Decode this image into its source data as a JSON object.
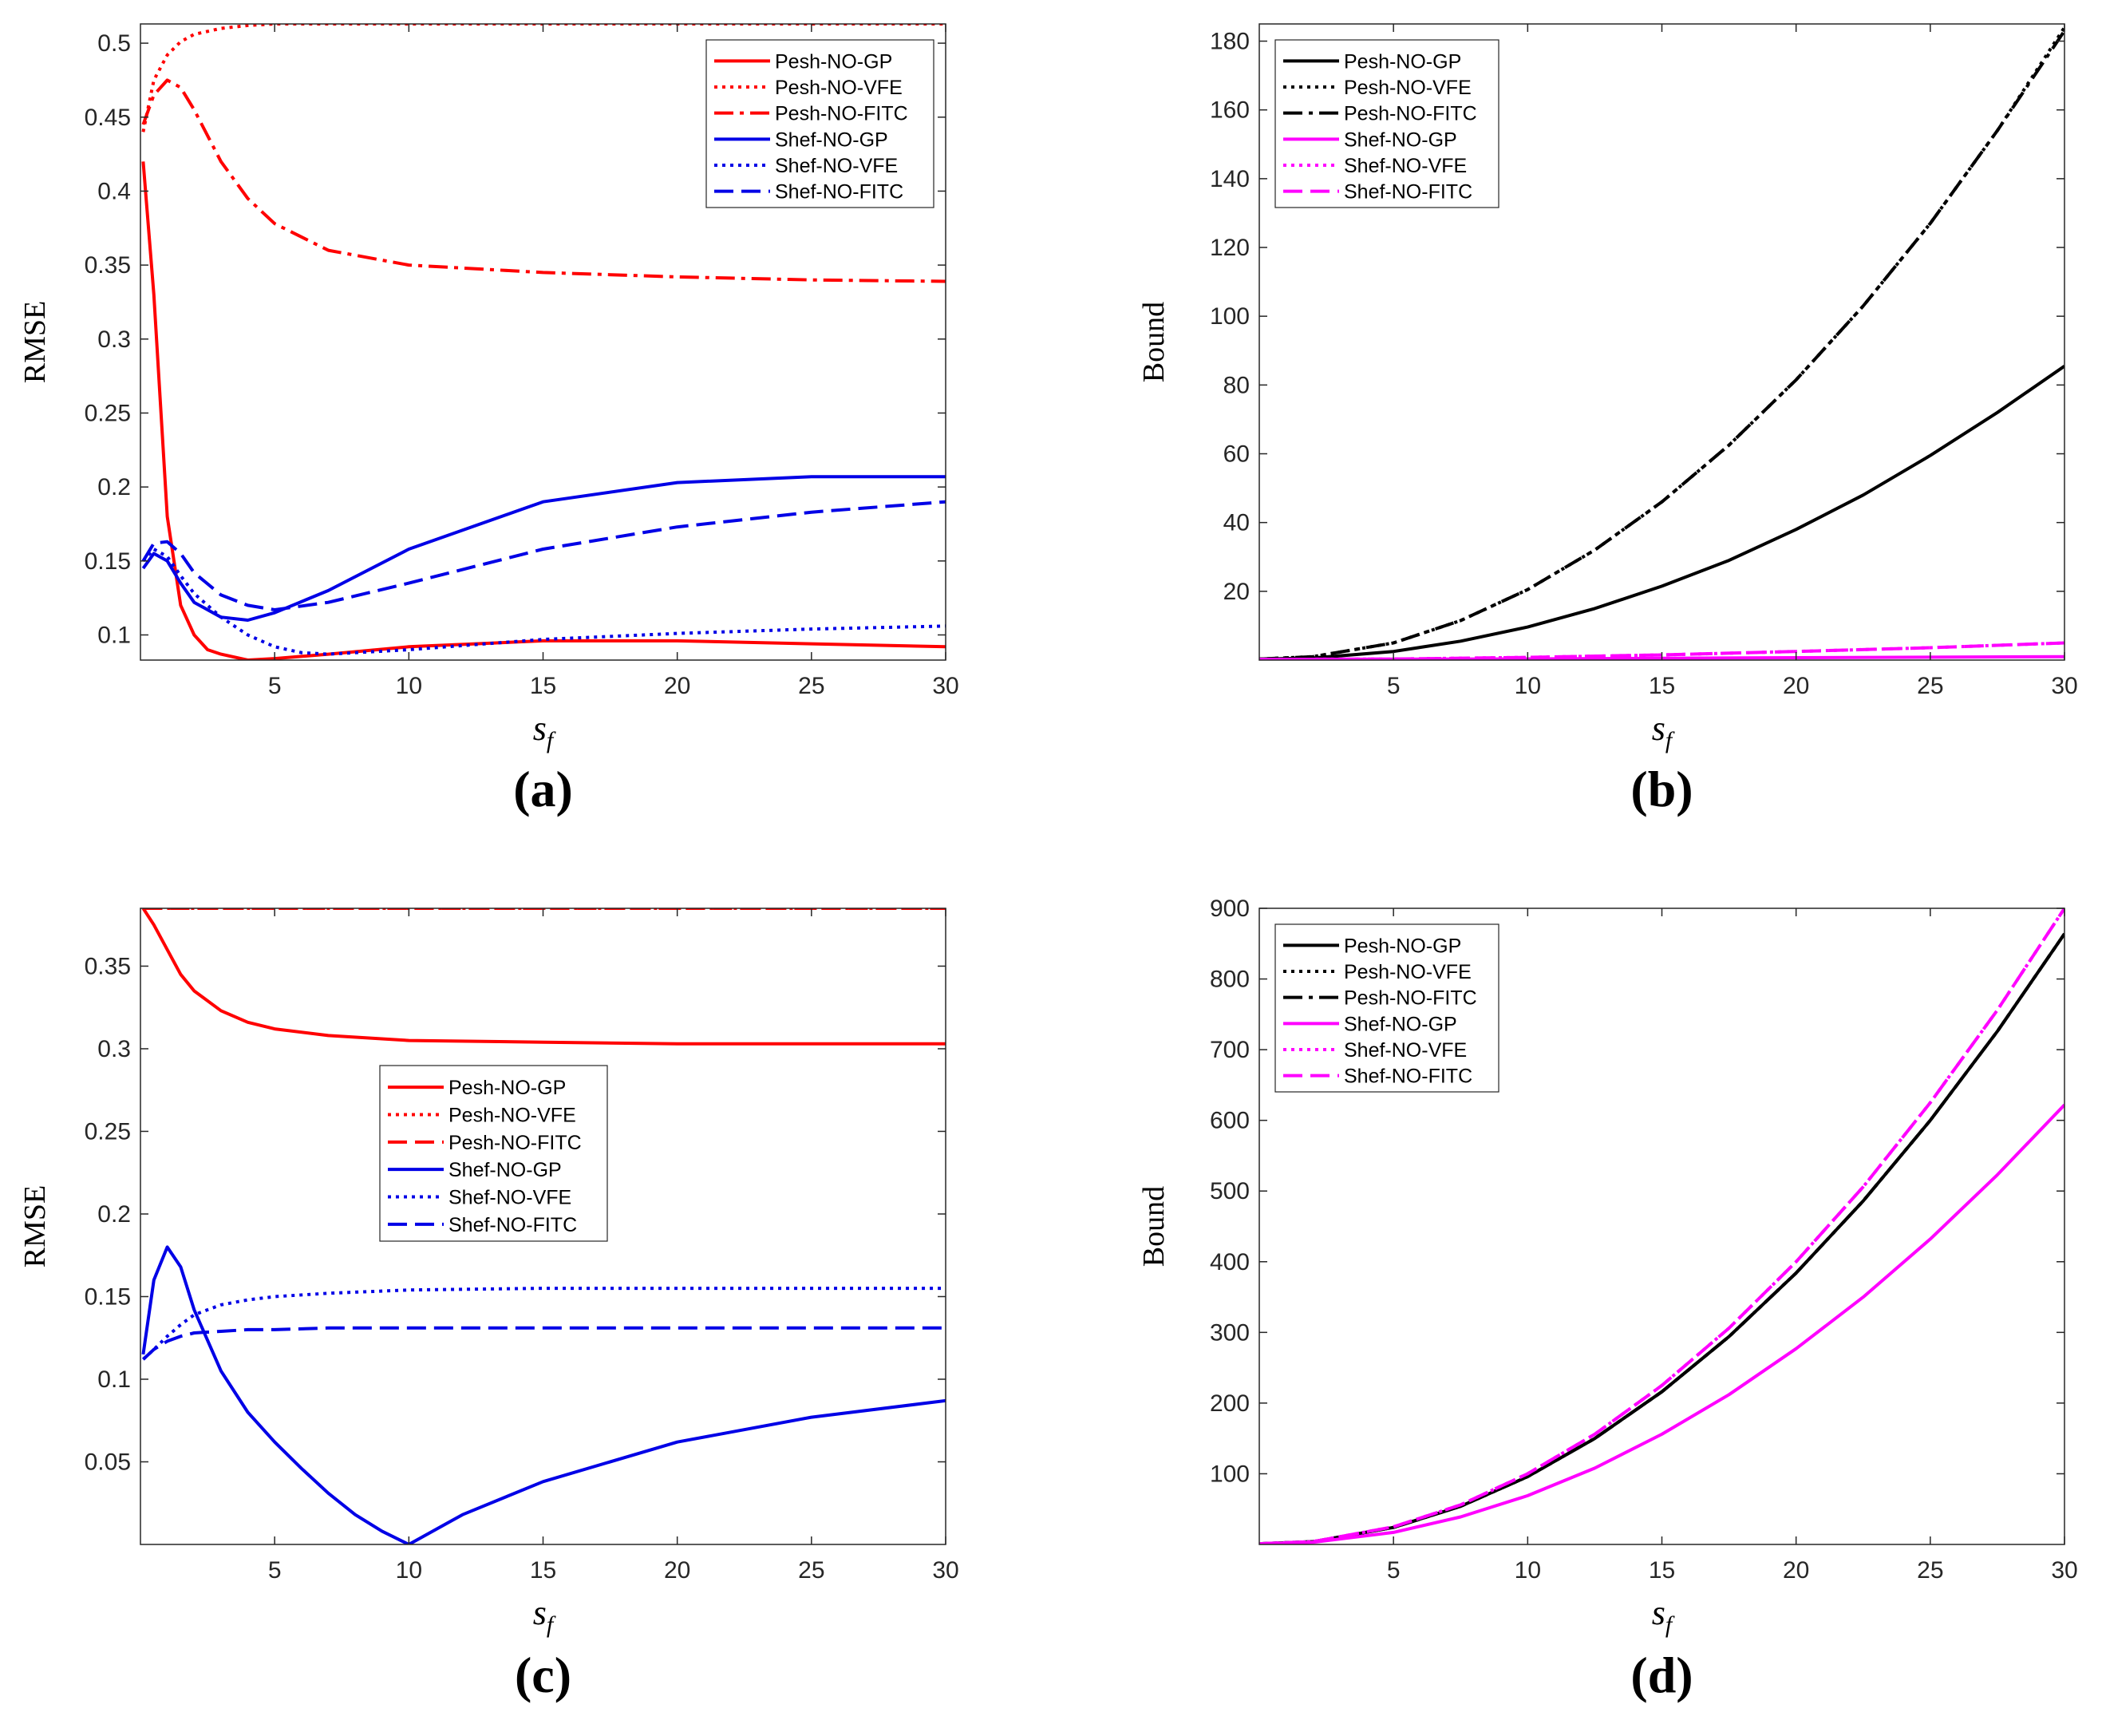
{
  "colors": {
    "red": "#ff0000",
    "blue": "#0000e6",
    "black": "#000000",
    "magenta": "#ff00ff",
    "axis": "#262626"
  },
  "chart_data": [
    {
      "id": "a",
      "type": "line",
      "panel_label": "(a)",
      "xlabel": "s_f",
      "ylabel": "RMSE",
      "xlim": [
        0,
        30
      ],
      "ylim": [
        0.083,
        0.513
      ],
      "xticks": [
        5,
        10,
        15,
        20,
        25,
        30
      ],
      "yticks": [
        0.1,
        0.15,
        0.2,
        0.25,
        0.3,
        0.35,
        0.4,
        0.45,
        0.5
      ],
      "legend_position": "top-right",
      "series": [
        {
          "name": "Pesh-NO-GP",
          "color": "#ff0000",
          "style": "solid",
          "width": 4,
          "x": [
            0.1,
            0.5,
            1,
            1.5,
            2,
            2.5,
            3,
            4,
            5,
            7,
            10,
            15,
            20,
            25,
            30
          ],
          "y": [
            0.42,
            0.33,
            0.18,
            0.12,
            0.1,
            0.09,
            0.087,
            0.083,
            0.084,
            0.087,
            0.092,
            0.096,
            0.096,
            0.094,
            0.092
          ]
        },
        {
          "name": "Pesh-NO-VFE",
          "color": "#ff0000",
          "style": "dotted",
          "width": 4,
          "x": [
            0.1,
            0.5,
            1,
            1.5,
            2,
            3,
            4,
            5,
            7,
            10,
            15,
            20,
            25,
            30
          ],
          "y": [
            0.44,
            0.475,
            0.492,
            0.501,
            0.506,
            0.51,
            0.512,
            0.513,
            0.513,
            0.513,
            0.513,
            0.513,
            0.513,
            0.513
          ]
        },
        {
          "name": "Pesh-NO-FITC",
          "color": "#ff0000",
          "style": "dashdot",
          "width": 4,
          "x": [
            0.1,
            0.5,
            1,
            1.5,
            2,
            3,
            4,
            5,
            7,
            10,
            15,
            20,
            25,
            30
          ],
          "y": [
            0.445,
            0.465,
            0.475,
            0.47,
            0.455,
            0.42,
            0.395,
            0.378,
            0.36,
            0.35,
            0.345,
            0.342,
            0.34,
            0.339
          ]
        },
        {
          "name": "Shef-NO-GP",
          "color": "#0000e6",
          "style": "solid",
          "width": 4,
          "x": [
            0.1,
            0.5,
            1,
            1.5,
            2,
            3,
            4,
            5,
            7,
            10,
            15,
            20,
            25,
            30
          ],
          "y": [
            0.145,
            0.155,
            0.15,
            0.135,
            0.122,
            0.112,
            0.11,
            0.115,
            0.13,
            0.158,
            0.19,
            0.203,
            0.207,
            0.207
          ]
        },
        {
          "name": "Shef-NO-VFE",
          "color": "#0000e6",
          "style": "dotted",
          "width": 4,
          "x": [
            0.1,
            0.5,
            1,
            1.5,
            2,
            3,
            4,
            5,
            6,
            7,
            10,
            15,
            20,
            25,
            30
          ],
          "y": [
            0.15,
            0.158,
            0.153,
            0.14,
            0.128,
            0.112,
            0.1,
            0.092,
            0.088,
            0.087,
            0.09,
            0.097,
            0.101,
            0.104,
            0.106
          ]
        },
        {
          "name": "Shef-NO-FITC",
          "color": "#0000e6",
          "style": "dashed",
          "width": 4,
          "x": [
            0.1,
            0.5,
            1,
            1.5,
            2,
            3,
            4,
            5,
            7,
            10,
            15,
            20,
            25,
            30
          ],
          "y": [
            0.15,
            0.162,
            0.163,
            0.155,
            0.142,
            0.127,
            0.12,
            0.117,
            0.122,
            0.135,
            0.158,
            0.173,
            0.183,
            0.19
          ]
        }
      ]
    },
    {
      "id": "b",
      "type": "line",
      "panel_label": "(b)",
      "xlabel": "s_f",
      "ylabel": "Bound",
      "xlim": [
        0,
        30
      ],
      "ylim": [
        0,
        185
      ],
      "xticks": [
        5,
        10,
        15,
        20,
        25,
        30
      ],
      "yticks": [
        20,
        40,
        60,
        80,
        100,
        120,
        140,
        160,
        180
      ],
      "legend_position": "top-left",
      "series": [
        {
          "name": "Pesh-NO-GP",
          "color": "#000000",
          "style": "solid",
          "width": 4,
          "x": [
            0,
            2,
            5,
            7.5,
            10,
            12.5,
            15,
            17.5,
            20,
            22.5,
            25,
            27.5,
            30
          ],
          "y": [
            0.3,
            0.6,
            2.5,
            5.5,
            9.6,
            15,
            21.5,
            29,
            38,
            48,
            59.5,
            72,
            85.5
          ]
        },
        {
          "name": "Pesh-NO-VFE",
          "color": "#000000",
          "style": "dotted",
          "width": 4,
          "x": [
            0,
            2,
            5,
            7.5,
            10,
            12.5,
            15,
            17.5,
            20,
            22.5,
            25,
            27.5,
            30
          ],
          "y": [
            0.3,
            1,
            5,
            11.5,
            20.5,
            32,
            46,
            62.5,
            81.5,
            103,
            127,
            154,
            184
          ]
        },
        {
          "name": "Pesh-NO-FITC",
          "color": "#000000",
          "style": "dashdot",
          "width": 4,
          "x": [
            0,
            2,
            5,
            7.5,
            10,
            12.5,
            15,
            17.5,
            20,
            22.5,
            25,
            27.5,
            30
          ],
          "y": [
            0.3,
            1,
            5,
            11.5,
            20.5,
            32,
            46,
            62.5,
            81.5,
            103,
            127,
            154,
            183
          ]
        },
        {
          "name": "Shef-NO-GP",
          "color": "#ff00ff",
          "style": "solid",
          "width": 4,
          "x": [
            0,
            10,
            20,
            30
          ],
          "y": [
            0.2,
            0.35,
            0.7,
            1.0
          ]
        },
        {
          "name": "Shef-NO-VFE",
          "color": "#ff00ff",
          "style": "dotted",
          "width": 4,
          "x": [
            0,
            5,
            10,
            15,
            20,
            25,
            30
          ],
          "y": [
            0.2,
            0.3,
            0.8,
            1.5,
            2.5,
            3.6,
            5
          ]
        },
        {
          "name": "Shef-NO-FITC",
          "color": "#ff00ff",
          "style": "dashed",
          "width": 4,
          "x": [
            0,
            5,
            10,
            15,
            20,
            25,
            30
          ],
          "y": [
            0.2,
            0.3,
            0.8,
            1.5,
            2.5,
            3.6,
            5
          ]
        }
      ]
    },
    {
      "id": "c",
      "type": "line",
      "panel_label": "(c)",
      "xlabel": "s_f",
      "ylabel": "RMSE",
      "xlim": [
        0,
        30
      ],
      "ylim": [
        0,
        0.385
      ],
      "xticks": [
        5,
        10,
        15,
        20,
        25,
        30
      ],
      "yticks": [
        0.05,
        0.1,
        0.15,
        0.2,
        0.25,
        0.3,
        0.35
      ],
      "legend_position": "center",
      "series": [
        {
          "name": "Pesh-NO-GP",
          "color": "#ff0000",
          "style": "solid",
          "width": 4,
          "x": [
            0.1,
            0.5,
            1,
            1.5,
            2,
            3,
            4,
            5,
            7,
            10,
            15,
            20,
            25,
            30
          ],
          "y": [
            0.385,
            0.375,
            0.36,
            0.345,
            0.335,
            0.323,
            0.316,
            0.312,
            0.308,
            0.305,
            0.304,
            0.303,
            0.303,
            0.303
          ]
        },
        {
          "name": "Pesh-NO-VFE",
          "color": "#ff0000",
          "style": "dotted",
          "width": 4,
          "x": [
            0.1,
            30
          ],
          "y": [
            0.385,
            0.385
          ]
        },
        {
          "name": "Pesh-NO-FITC",
          "color": "#ff0000",
          "style": "dashed",
          "width": 4,
          "x": [
            0.1,
            30
          ],
          "y": [
            0.385,
            0.385
          ]
        },
        {
          "name": "Shef-NO-GP",
          "color": "#0000e6",
          "style": "solid",
          "width": 4,
          "x": [
            0.1,
            0.5,
            1,
            1.5,
            2,
            3,
            4,
            5,
            6,
            7,
            8,
            9,
            10,
            12,
            15,
            20,
            25,
            30
          ],
          "y": [
            0.115,
            0.16,
            0.18,
            0.168,
            0.142,
            0.105,
            0.08,
            0.062,
            0.046,
            0.031,
            0.018,
            0.008,
            0.0,
            0.018,
            0.038,
            0.062,
            0.077,
            0.087
          ]
        },
        {
          "name": "Shef-NO-VFE",
          "color": "#0000e6",
          "style": "dotted",
          "width": 4,
          "x": [
            0.1,
            0.5,
            1,
            1.5,
            2,
            3,
            4,
            5,
            7,
            10,
            15,
            20,
            25,
            30
          ],
          "y": [
            0.112,
            0.118,
            0.126,
            0.133,
            0.139,
            0.145,
            0.148,
            0.15,
            0.152,
            0.154,
            0.155,
            0.155,
            0.155,
            0.155
          ]
        },
        {
          "name": "Shef-NO-FITC",
          "color": "#0000e6",
          "style": "dashed",
          "width": 4,
          "x": [
            0.1,
            0.5,
            1,
            1.5,
            2,
            3,
            4,
            5,
            7,
            10,
            15,
            20,
            25,
            30
          ],
          "y": [
            0.112,
            0.118,
            0.123,
            0.126,
            0.128,
            0.129,
            0.13,
            0.13,
            0.131,
            0.131,
            0.131,
            0.131,
            0.131,
            0.131
          ]
        }
      ]
    },
    {
      "id": "d",
      "type": "line",
      "panel_label": "(d)",
      "xlabel": "s_f",
      "ylabel": "Bound",
      "xlim": [
        0,
        30
      ],
      "ylim": [
        0,
        900
      ],
      "xticks": [
        5,
        10,
        15,
        20,
        25,
        30
      ],
      "yticks": [
        100,
        200,
        300,
        400,
        500,
        600,
        700,
        800,
        900
      ],
      "legend_position": "top-left",
      "series": [
        {
          "name": "Pesh-NO-GP",
          "color": "#000000",
          "style": "solid",
          "width": 4,
          "x": [
            0,
            2,
            5,
            7.5,
            10,
            12.5,
            15,
            17.5,
            20,
            22.5,
            25,
            27.5,
            30
          ],
          "y": [
            1,
            4,
            24,
            54,
            96,
            150,
            216,
            294,
            384,
            486,
            600,
            726,
            864
          ]
        },
        {
          "name": "Pesh-NO-VFE",
          "color": "#000000",
          "style": "dotted",
          "width": 4,
          "x": [
            0,
            2,
            5,
            7.5,
            10,
            12.5,
            15,
            17.5,
            20,
            22.5,
            25,
            27.5,
            30
          ],
          "y": [
            1,
            4,
            24,
            54,
            96,
            150,
            216,
            294,
            384,
            486,
            600,
            726,
            864
          ]
        },
        {
          "name": "Pesh-NO-FITC",
          "color": "#000000",
          "style": "dashdot",
          "width": 4,
          "x": [
            0,
            2,
            5,
            7.5,
            10,
            12.5,
            15,
            17.5,
            20,
            22.5,
            25,
            27.5,
            30
          ],
          "y": [
            1,
            4,
            24,
            54,
            96,
            150,
            216,
            294,
            384,
            486,
            600,
            726,
            864
          ]
        },
        {
          "name": "Shef-NO-GP",
          "color": "#ff00ff",
          "style": "solid",
          "width": 4,
          "x": [
            0,
            2,
            5,
            7.5,
            10,
            12.5,
            15,
            17.5,
            20,
            22.5,
            25,
            27.5,
            30
          ],
          "y": [
            1,
            3,
            17,
            39,
            69,
            108,
            156,
            212,
            277,
            350,
            432,
            523,
            622
          ]
        },
        {
          "name": "Shef-NO-VFE",
          "color": "#ff00ff",
          "style": "dotted",
          "width": 4,
          "x": [
            0,
            2,
            5,
            7.5,
            10,
            12.5,
            15,
            17.5,
            20,
            22.5,
            25,
            27.5,
            30
          ],
          "y": [
            1,
            4,
            25,
            56,
            100,
            156,
            225,
            306,
            400,
            506,
            625,
            756,
            900
          ]
        },
        {
          "name": "Shef-NO-FITC",
          "color": "#ff00ff",
          "style": "dashed",
          "width": 4,
          "x": [
            0,
            2,
            5,
            7.5,
            10,
            12.5,
            15,
            17.5,
            20,
            22.5,
            25,
            27.5,
            30
          ],
          "y": [
            1,
            4,
            25,
            56,
            100,
            156,
            225,
            306,
            400,
            506,
            625,
            756,
            900
          ]
        }
      ]
    }
  ]
}
